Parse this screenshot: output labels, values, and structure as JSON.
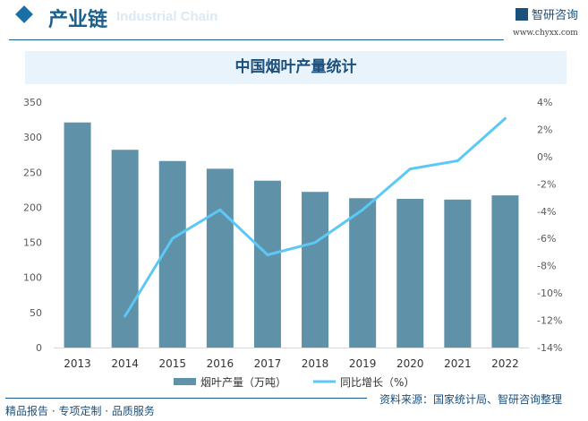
{
  "header": {
    "title": "产业链",
    "subtitle": "Industrial Chain",
    "brand": "智研咨询",
    "url": "www.chyxx.com"
  },
  "chart_data": {
    "type": "bar+line",
    "title": "中国烟叶产量统计",
    "categories": [
      "2013",
      "2014",
      "2015",
      "2016",
      "2017",
      "2018",
      "2019",
      "2020",
      "2021",
      "2022"
    ],
    "series": [
      {
        "name": "烟叶产量（万吨）",
        "type": "bar",
        "axis": "left",
        "color": "#5f92a8",
        "values": [
          321,
          282,
          266,
          255,
          238,
          222,
          213,
          212,
          211,
          217
        ]
      },
      {
        "name": "同比增长（%）",
        "type": "line",
        "axis": "right",
        "color": "#5bc8f5",
        "values": [
          null,
          -11.7,
          -6.0,
          -3.9,
          -7.2,
          -6.3,
          -3.9,
          -0.9,
          -0.3,
          2.8
        ]
      }
    ],
    "ylim_left": [
      0,
      350
    ],
    "yticks_left": [
      "0",
      "50",
      "100",
      "150",
      "200",
      "250",
      "300",
      "350"
    ],
    "ylim_right": [
      -14,
      4
    ],
    "yticks_right": [
      "4%",
      "2%",
      "0%",
      "-2%",
      "-4%",
      "-6%",
      "-8%",
      "-10%",
      "-12%",
      "-14%"
    ],
    "grid": false,
    "legend": "bottom"
  },
  "footer": {
    "slogan": "精品报告 · 专项定制 · 品质服务",
    "source": "资料来源：国家统计局、智研咨询整理"
  }
}
